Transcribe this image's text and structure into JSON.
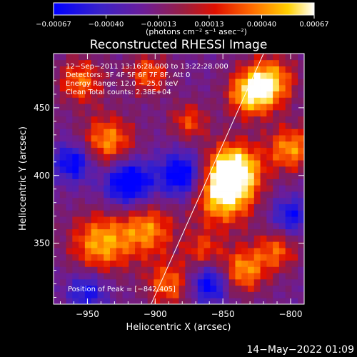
{
  "chart_data": {
    "type": "heatmap",
    "title": "Reconstructed RHESSI Image",
    "xlabel": "Heliocentric X (arcsec)",
    "ylabel": "Heliocentric Y (arcsec)",
    "xlim": [
      -975,
      -790
    ],
    "ylim": [
      305,
      490
    ],
    "xticks": [
      -950,
      -900,
      -850,
      -800
    ],
    "xtick_labels": [
      "−950",
      "−900",
      "−850",
      "−800"
    ],
    "yticks": [
      350,
      400,
      450
    ],
    "ytick_labels": [
      "350",
      "400",
      "450"
    ],
    "colorbar": {
      "min": -0.00067,
      "max": 0.00067,
      "ticks": [
        -0.00067,
        -0.0004,
        -0.00013,
        0.00013,
        0.0004,
        0.00067
      ],
      "tick_labels": [
        "−0.00067",
        "−0.00040",
        "−0.00013",
        "0.00013",
        "0.00040",
        "0.00067"
      ],
      "unit_label": "(photons cm⁻² s⁻¹ asec⁻²)",
      "colormap": "blue-purple-red-yellow-white"
    },
    "info_lines": [
      "12−Sep−2011 13:16:28.000 to 13:22:28.000",
      "Detectors: 3F 4F 5F 6F 7F 8F, Att 0",
      "Energy Range: 12.0 − 25.0 keV",
      "Clean     Total counts: 2.38E+04"
    ],
    "peak_text": "Position of Peak = [−842,405]",
    "peak": [
      -842,
      405
    ],
    "limb_line": [
      [
        -903,
        305
      ],
      [
        -820,
        490
      ]
    ],
    "grid_cells": 40,
    "hotspots": [
      {
        "x": -842,
        "y": 405,
        "amp": 1.0,
        "r": 14
      },
      {
        "x": -850,
        "y": 385,
        "amp": 0.85,
        "r": 16
      },
      {
        "x": -830,
        "y": 460,
        "amp": 0.8,
        "r": 12
      },
      {
        "x": -815,
        "y": 470,
        "amp": 0.75,
        "r": 13
      },
      {
        "x": -800,
        "y": 420,
        "amp": 0.7,
        "r": 12
      },
      {
        "x": -940,
        "y": 350,
        "amp": 0.75,
        "r": 16
      },
      {
        "x": -935,
        "y": 425,
        "amp": 0.7,
        "r": 14
      },
      {
        "x": -905,
        "y": 360,
        "amp": 0.65,
        "r": 14
      },
      {
        "x": -955,
        "y": 470,
        "amp": 0.6,
        "r": 12
      },
      {
        "x": -905,
        "y": 475,
        "amp": 0.55,
        "r": 11
      },
      {
        "x": -890,
        "y": 320,
        "amp": 0.6,
        "r": 12
      },
      {
        "x": -835,
        "y": 330,
        "amp": 0.7,
        "r": 12
      },
      {
        "x": -810,
        "y": 345,
        "amp": 0.55,
        "r": 11
      },
      {
        "x": -875,
        "y": 440,
        "amp": 0.5,
        "r": 10
      },
      {
        "x": -865,
        "y": 345,
        "amp": 0.45,
        "r": 10
      },
      {
        "x": -920,
        "y": 395,
        "amp": -0.9,
        "r": 12
      },
      {
        "x": -960,
        "y": 410,
        "amp": -0.7,
        "r": 10
      },
      {
        "x": -880,
        "y": 400,
        "amp": -0.8,
        "r": 12
      },
      {
        "x": -860,
        "y": 320,
        "amp": -0.7,
        "r": 10
      },
      {
        "x": -800,
        "y": 370,
        "amp": -0.55,
        "r": 10
      },
      {
        "x": -950,
        "y": 315,
        "amp": -0.55,
        "r": 10
      }
    ]
  },
  "footer": {
    "timestamp": "14−May−2022 01:09"
  }
}
